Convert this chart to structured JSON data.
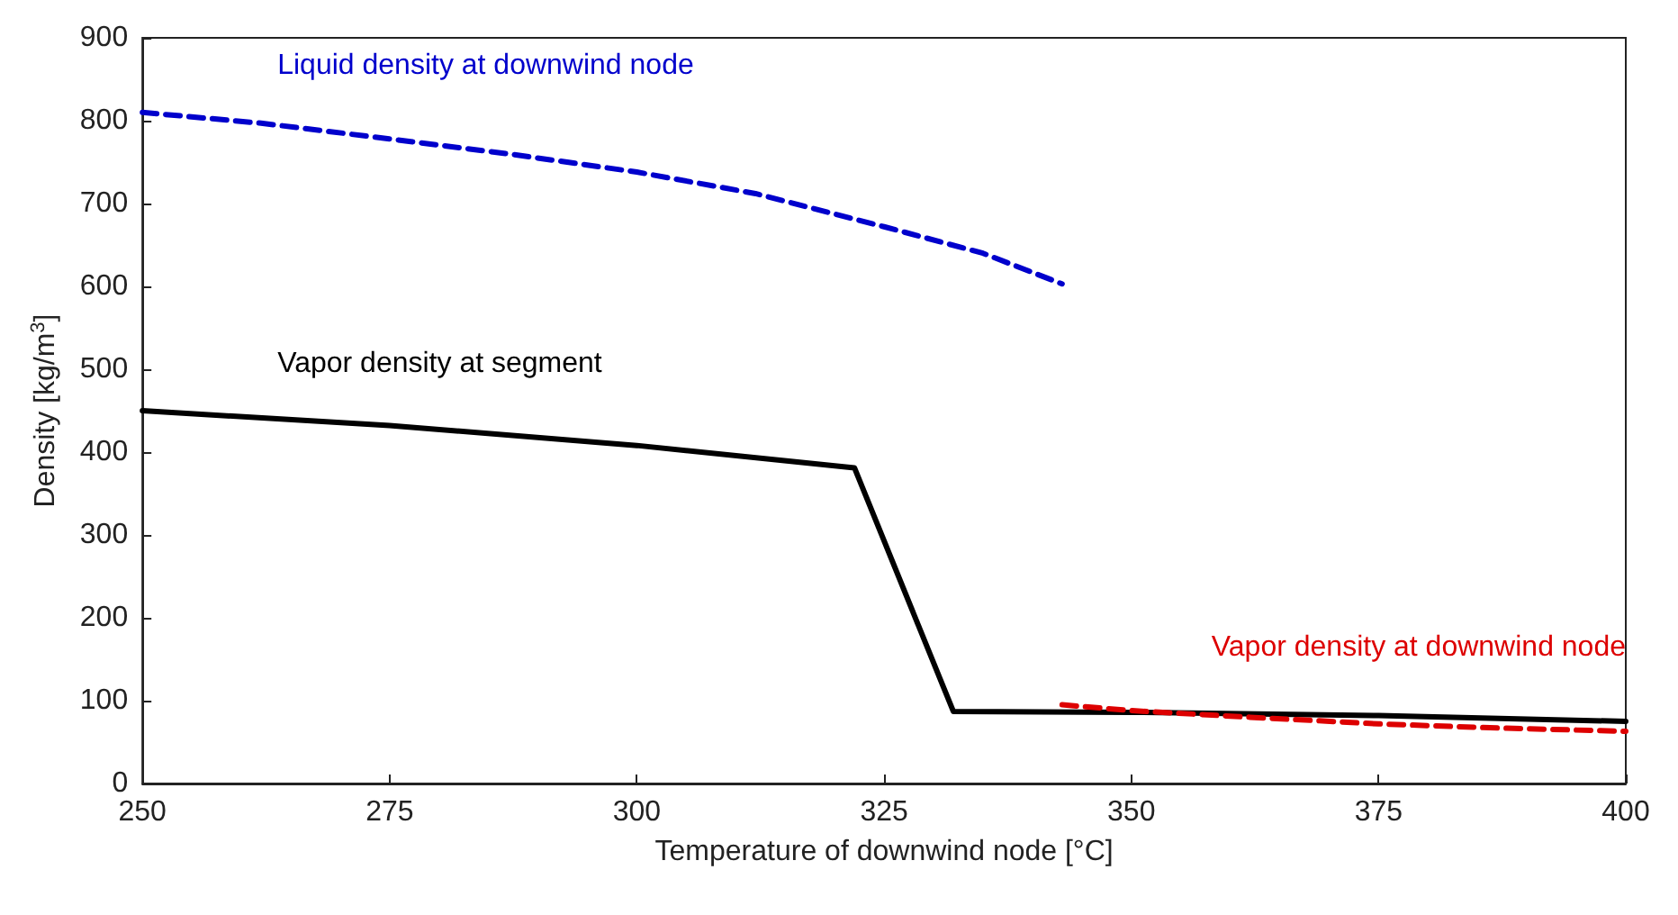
{
  "chart_data": {
    "type": "line",
    "xlabel": "Temperature of downwind node [°C]",
    "ylabel": "Density [kg/m$^{3}$]",
    "xlim": [
      250,
      400
    ],
    "xticks": [
      250,
      275,
      300,
      325,
      350,
      375,
      400
    ],
    "ylim": [
      0,
      900
    ],
    "yticks": [
      0,
      100,
      200,
      300,
      400,
      500,
      600,
      700,
      800,
      900
    ],
    "grid": false,
    "series": [
      {
        "color": "#0000cc",
        "line_style": "dashed",
        "x": [
          250,
          262,
          275,
          287,
          300,
          312,
          325,
          335,
          343
        ],
        "values": [
          810,
          797,
          778,
          760,
          738,
          712,
          672,
          640,
          603
        ]
      },
      {
        "color": "#000000",
        "line_style": "solid",
        "x": [
          250,
          275,
          300,
          322,
          332,
          350,
          375,
          400
        ],
        "values": [
          450,
          432,
          408,
          381,
          87,
          86,
          82,
          75
        ]
      },
      {
        "color": "#dd0000",
        "line_style": "dashed",
        "x": [
          343,
          350,
          362,
          375,
          387,
          400
        ],
        "values": [
          95,
          88,
          80,
          72,
          67,
          63
        ]
      }
    ],
    "annotations": [
      "Liquid density at downwind node",
      "Vapor density at segment",
      "Vapor density at downwind node"
    ]
  }
}
